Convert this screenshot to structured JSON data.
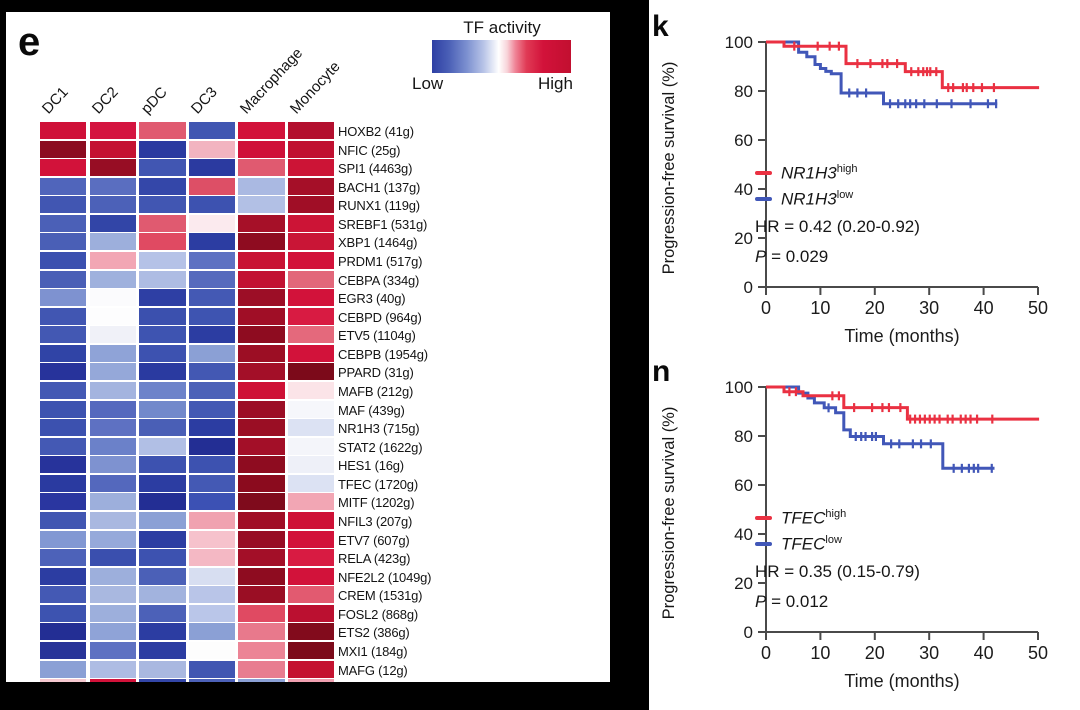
{
  "panels": {
    "e": {
      "label": "e"
    },
    "k": {
      "label": "k"
    },
    "n": {
      "label": "n"
    }
  },
  "chart_data": [
    {
      "id": "e",
      "type": "heatmap",
      "legend": {
        "title": "TF activity",
        "low": "Low",
        "high": "High"
      },
      "colorscale": {
        "low": "#2e3fa4",
        "mid": "#ffffff",
        "high": "#c20f30"
      },
      "columns": [
        "DC1",
        "DC2",
        "pDC",
        "DC3",
        "Macrophage",
        "Monocyte"
      ],
      "rows": [
        "HOXB2 (41g)",
        "NFIC (25g)",
        "SPI1 (4463g)",
        "BACH1 (137g)",
        "RUNX1 (119g)",
        "SREBF1 (531g)",
        "XBP1 (1464g)",
        "PRDM1 (517g)",
        "CEBPA (334g)",
        "EGR3 (40g)",
        "CEBPD (964g)",
        "ETV5 (1104g)",
        "CEBPB (1954g)",
        "PPARD (31g)",
        "MAFB (212g)",
        "MAF (439g)",
        "NR1H3 (715g)",
        "STAT2 (1622g)",
        "HES1 (16g)",
        "TFEC (1720g)",
        "MITF (1202g)",
        "NFIL3 (207g)",
        "ETV7 (607g)",
        "RELA (423g)",
        "NFE2L2 (1049g)",
        "CREM (1531g)",
        "FOSL2 (868g)",
        "ETS2 (386g)",
        "MXI1 (184g)",
        "MAFG (12g)",
        ""
      ],
      "colors": [
        [
          "#cf1038",
          "#d41440",
          "#e05a70",
          "#4156b2",
          "#d2123a",
          "#b30f2e"
        ],
        [
          "#8c0c20",
          "#c41232",
          "#2b3aa0",
          "#f2b4c0",
          "#cf1038",
          "#c01030"
        ],
        [
          "#d2123a",
          "#970d24",
          "#4156b2",
          "#2b3aa0",
          "#e05a70",
          "#cc1436"
        ],
        [
          "#5065bb",
          "#5a6ec0",
          "#3447a9",
          "#dd4f66",
          "#aab9e2",
          "#a50f28"
        ],
        [
          "#4156b2",
          "#4c61b8",
          "#4156b2",
          "#3d52b0",
          "#b2c0e5",
          "#a00e26"
        ],
        [
          "#4b60b7",
          "#3245a7",
          "#e05a70",
          "#fbeaee",
          "#a61028",
          "#cc1436"
        ],
        [
          "#4a5fb6",
          "#9dafdc",
          "#e04a62",
          "#2c3da2",
          "#8e0c20",
          "#c91536"
        ],
        [
          "#3b50af",
          "#f2a6b4",
          "#b5c2e7",
          "#5e71c2",
          "#c81334",
          "#d2123a"
        ],
        [
          "#4a5fb6",
          "#9fb1dd",
          "#aebce3",
          "#566abd",
          "#c21232",
          "#e2677a"
        ],
        [
          "#7e92d0",
          "#fbfbfd",
          "#2e3fa4",
          "#4459b4",
          "#9c0e26",
          "#d2123a"
        ],
        [
          "#4156b2",
          "#fdfdfe",
          "#3b50ae",
          "#3e54b1",
          "#a00e26",
          "#d81b42"
        ],
        [
          "#4358b3",
          "#f0f1f8",
          "#3e54b1",
          "#2c3da2",
          "#8e0c20",
          "#e4697c"
        ],
        [
          "#3044a6",
          "#8fa3d7",
          "#3d52b0",
          "#8ba0d5",
          "#9c0e24",
          "#d2123a"
        ],
        [
          "#27339b",
          "#95a8d9",
          "#2a3aa0",
          "#4358b3",
          "#a30f28",
          "#7c0a1a"
        ],
        [
          "#4459b4",
          "#a4b4df",
          "#6d83ca",
          "#4c61b8",
          "#ce1136",
          "#fbe4e8"
        ],
        [
          "#3d53b0",
          "#5569be",
          "#7289cb",
          "#4459b4",
          "#9c0e26",
          "#f6f7fb"
        ],
        [
          "#3c51af",
          "#5e71c2",
          "#4a5fb6",
          "#2c3da2",
          "#9a0e24",
          "#dce2f3"
        ],
        [
          "#4459b4",
          "#6b81c9",
          "#b1bfe5",
          "#232e94",
          "#a30f28",
          "#f4f5fa"
        ],
        [
          "#27339b",
          "#7e92d0",
          "#3d52b0",
          "#3d52b0",
          "#8e0c20",
          "#eef0f8"
        ],
        [
          "#2a3aa0",
          "#5468bd",
          "#2c3da2",
          "#4459b4",
          "#8b0b1e",
          "#dce2f3"
        ],
        [
          "#2a36a0",
          "#9dafdc",
          "#232e94",
          "#3c51b4",
          "#7f0b1c",
          "#f2a6b4"
        ],
        [
          "#4156b2",
          "#a9b8e0",
          "#8ba0d5",
          "#f0a2b0",
          "#a00e26",
          "#ce1136"
        ],
        [
          "#8298d3",
          "#96a9da",
          "#2c3da2",
          "#f6c2cc",
          "#970d24",
          "#d2123a"
        ],
        [
          "#4d62b9",
          "#3a4fae",
          "#3d52b0",
          "#f4b8c4",
          "#a30f28",
          "#d81b42"
        ],
        [
          "#2c3da2",
          "#9dafdc",
          "#4b60b7",
          "#d7def1",
          "#8e0c20",
          "#d2123a"
        ],
        [
          "#4459b4",
          "#a9b8e0",
          "#a2b3de",
          "#b9c5e8",
          "#9a0e24",
          "#e25a70"
        ],
        [
          "#3d53b0",
          "#9dafdc",
          "#4c61b8",
          "#bac6e9",
          "#e04a62",
          "#bb1030"
        ],
        [
          "#232e94",
          "#8fa3d7",
          "#2c3da2",
          "#8ba0d5",
          "#e8798c",
          "#820b1c"
        ],
        [
          "#283499",
          "#5e71c2",
          "#2c3da2",
          "#fdfdfd",
          "#ec8496",
          "#7c0a1a"
        ],
        [
          "#8ba0d5",
          "#aebce3",
          "#a9b8e0",
          "#4156b2",
          "#e87d90",
          "#c41230"
        ],
        [
          "#f6c9d0",
          "#d2123a",
          "#3346a8",
          "#4c61b8",
          "#8ba0d5",
          "#f0a0b0"
        ]
      ],
      "note": "bottom row partially cropped by figure edge"
    },
    {
      "id": "k",
      "type": "line",
      "subtype": "kaplan-meier",
      "xlabel": "Time (months)",
      "ylabel": "Progression-free survival (%)",
      "xlim": [
        0,
        50
      ],
      "ylim": [
        0,
        100
      ],
      "xticks": [
        0,
        10,
        20,
        30,
        40,
        50
      ],
      "yticks": [
        0,
        20,
        40,
        60,
        80,
        100
      ],
      "annotations": {
        "hr": "HR = 0.42 (0.20-0.92)",
        "p_label": "P",
        "p_rest": " = 0.029"
      },
      "series": [
        {
          "gene": "NR1H3",
          "sup": "low",
          "color": "#4157b8",
          "steps": [
            [
              0,
              100
            ],
            [
              6,
              100
            ],
            [
              6,
              95.8
            ],
            [
              7.5,
              95.8
            ],
            [
              7.5,
              94
            ],
            [
              9,
              94
            ],
            [
              9,
              90.8
            ],
            [
              10,
              90.8
            ],
            [
              10,
              89.2
            ],
            [
              11,
              89.2
            ],
            [
              11,
              88
            ],
            [
              12,
              88
            ],
            [
              12,
              87
            ],
            [
              13.8,
              87
            ],
            [
              13.8,
              79.2
            ],
            [
              21.6,
              79.2
            ],
            [
              21.6,
              74.8
            ],
            [
              42.5,
              74.8
            ]
          ],
          "censors": [
            [
              15.3,
              79.2
            ],
            [
              16.8,
              79.2
            ],
            [
              18.4,
              79.2
            ],
            [
              22.8,
              74.8
            ],
            [
              24.3,
              74.8
            ],
            [
              25.6,
              74.8
            ],
            [
              26.5,
              74.8
            ],
            [
              27.6,
              74.8
            ],
            [
              29.1,
              74.8
            ],
            [
              31.4,
              74.8
            ],
            [
              34.1,
              74.8
            ],
            [
              37.6,
              74.8
            ],
            [
              40.8,
              74.8
            ],
            [
              42.3,
              74.8
            ]
          ]
        },
        {
          "gene": "NR1H3",
          "sup": "high",
          "color": "#ea3142",
          "steps": [
            [
              0,
              100
            ],
            [
              3.3,
              100
            ],
            [
              3.3,
              98.3
            ],
            [
              14.7,
              98.3
            ],
            [
              14.7,
              91.2
            ],
            [
              25.6,
              91.2
            ],
            [
              25.6,
              87.9
            ],
            [
              32.4,
              87.9
            ],
            [
              32.4,
              81.4
            ],
            [
              50.2,
              81.4
            ]
          ],
          "censors": [
            [
              5.2,
              98.3
            ],
            [
              9.5,
              98.3
            ],
            [
              11.7,
              98.3
            ],
            [
              13.4,
              98.3
            ],
            [
              16.8,
              91.2
            ],
            [
              19.2,
              91.2
            ],
            [
              21.4,
              91.2
            ],
            [
              22.3,
              91.2
            ],
            [
              24.1,
              91.2
            ],
            [
              26.7,
              87.9
            ],
            [
              28,
              87.9
            ],
            [
              28.9,
              87.9
            ],
            [
              29.6,
              87.9
            ],
            [
              30.2,
              87.9
            ],
            [
              31.3,
              87.9
            ],
            [
              33.5,
              81.4
            ],
            [
              34.4,
              81.4
            ],
            [
              36.2,
              81.4
            ],
            [
              36.9,
              81.4
            ],
            [
              38.1,
              81.4
            ],
            [
              39.7,
              81.4
            ],
            [
              41.9,
              81.4
            ]
          ]
        }
      ],
      "legend_order": [
        "high",
        "low"
      ]
    },
    {
      "id": "n",
      "type": "line",
      "subtype": "kaplan-meier",
      "xlabel": "Time (months)",
      "ylabel": "Progression-free survival (%)",
      "xlim": [
        0,
        50
      ],
      "ylim": [
        0,
        100
      ],
      "xticks": [
        0,
        10,
        20,
        30,
        40,
        50
      ],
      "yticks": [
        0,
        20,
        40,
        60,
        80,
        100
      ],
      "annotations": {
        "hr": "HR = 0.35 (0.15-0.79)",
        "p_label": "P",
        "p_rest": " = 0.012"
      },
      "series": [
        {
          "gene": "TFEC",
          "sup": "low",
          "color": "#4157b8",
          "steps": [
            [
              0,
              100
            ],
            [
              6,
              100
            ],
            [
              6,
              97.5
            ],
            [
              7.7,
              97.5
            ],
            [
              7.7,
              95.5
            ],
            [
              8.9,
              95.5
            ],
            [
              8.9,
              93.5
            ],
            [
              10.7,
              93.5
            ],
            [
              10.7,
              91.5
            ],
            [
              12.8,
              91.5
            ],
            [
              12.8,
              89.5
            ],
            [
              14.3,
              89.5
            ],
            [
              14.3,
              82.5
            ],
            [
              15.5,
              82.5
            ],
            [
              15.5,
              79.8
            ],
            [
              21.6,
              79.8
            ],
            [
              21.6,
              76.8
            ],
            [
              32.5,
              76.8
            ],
            [
              32.5,
              66.8
            ],
            [
              42,
              66.8
            ]
          ],
          "censors": [
            [
              11.5,
              91.5
            ],
            [
              16.5,
              79.8
            ],
            [
              17.5,
              79.8
            ],
            [
              18.3,
              79.8
            ],
            [
              19.5,
              79.8
            ],
            [
              20.2,
              79.8
            ],
            [
              23,
              76.8
            ],
            [
              24.5,
              76.8
            ],
            [
              27,
              76.8
            ],
            [
              28.5,
              76.8
            ],
            [
              30.3,
              76.8
            ],
            [
              34.5,
              66.8
            ],
            [
              36,
              66.8
            ],
            [
              37.3,
              66.8
            ],
            [
              38.2,
              66.8
            ],
            [
              39,
              66.8
            ],
            [
              41.5,
              66.8
            ]
          ]
        },
        {
          "gene": "TFEC",
          "sup": "high",
          "color": "#ea3142",
          "steps": [
            [
              0,
              100
            ],
            [
              3.3,
              100
            ],
            [
              3.3,
              98.1
            ],
            [
              6.8,
              98.1
            ],
            [
              6.8,
              96.4
            ],
            [
              14.3,
              96.4
            ],
            [
              14.3,
              91.6
            ],
            [
              26,
              91.6
            ],
            [
              26,
              86.9
            ],
            [
              50.2,
              86.9
            ]
          ],
          "censors": [
            [
              4.3,
              98.1
            ],
            [
              5.5,
              98.1
            ],
            [
              12.2,
              96.4
            ],
            [
              13.4,
              96.4
            ],
            [
              16.2,
              91.6
            ],
            [
              19.5,
              91.6
            ],
            [
              21.4,
              91.6
            ],
            [
              22.6,
              91.6
            ],
            [
              24.7,
              91.6
            ],
            [
              26.5,
              86.9
            ],
            [
              27.4,
              86.9
            ],
            [
              28.3,
              86.9
            ],
            [
              29.2,
              86.9
            ],
            [
              30.1,
              86.9
            ],
            [
              31,
              86.9
            ],
            [
              31.9,
              86.9
            ],
            [
              33.4,
              86.9
            ],
            [
              34.3,
              86.9
            ],
            [
              35.8,
              86.9
            ],
            [
              36.7,
              86.9
            ],
            [
              37.6,
              86.9
            ],
            [
              38.8,
              86.9
            ],
            [
              41.6,
              86.9
            ]
          ]
        }
      ],
      "legend_order": [
        "high",
        "low"
      ]
    }
  ]
}
